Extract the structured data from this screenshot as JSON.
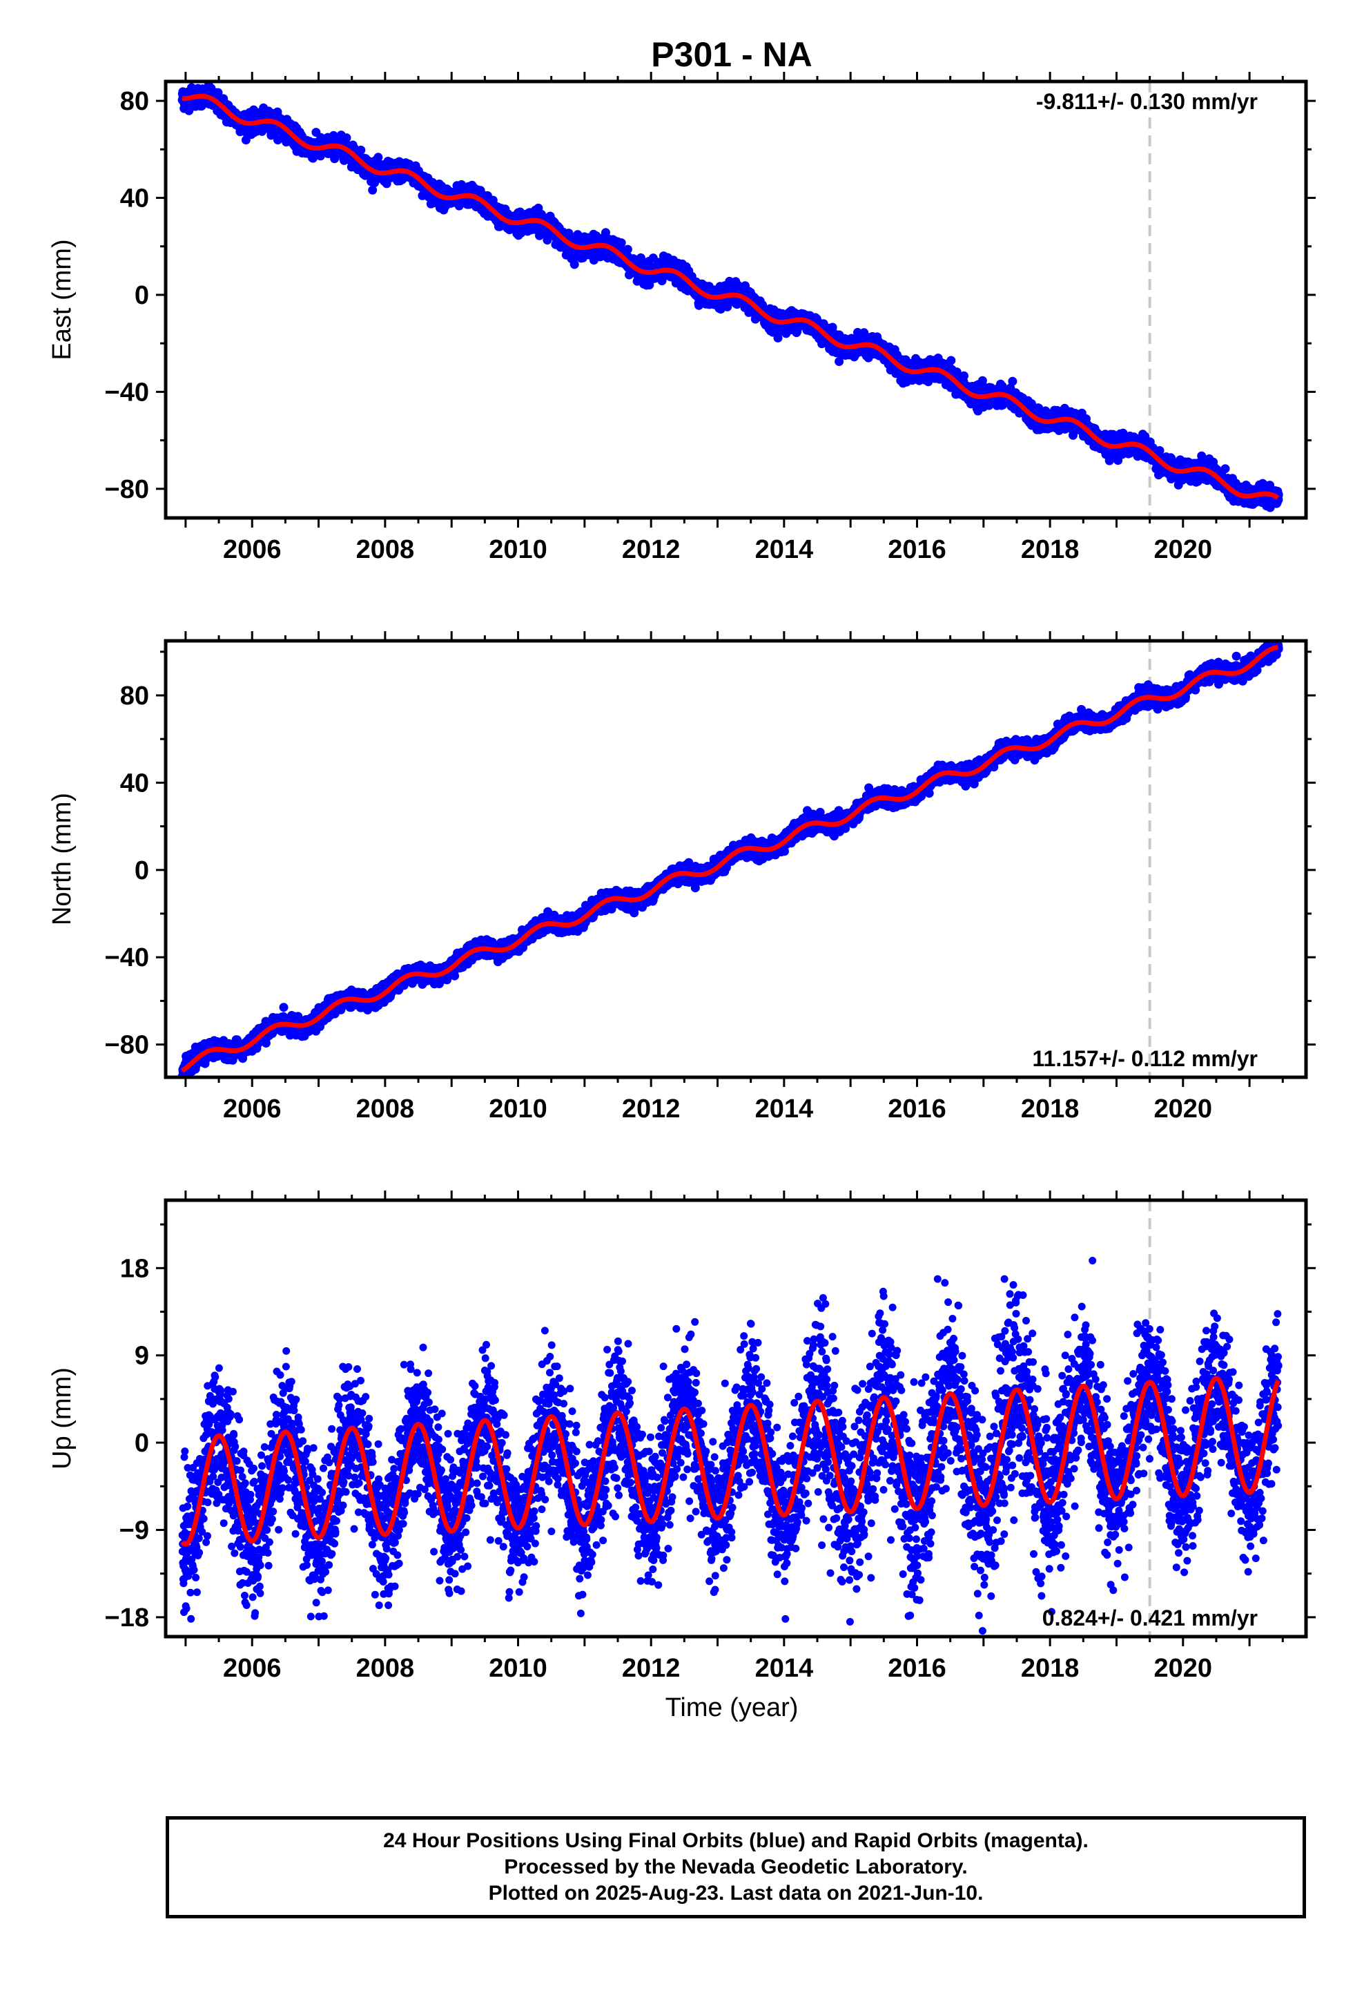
{
  "title": "P301 - NA",
  "chart_data": [
    {
      "type": "scatter",
      "panel": "east",
      "ylabel": "East (mm)",
      "xlabel": "",
      "xlim": [
        2004.7,
        2021.85
      ],
      "ylim": [
        -92,
        88
      ],
      "yticks": [
        80,
        40,
        0,
        -40,
        -80
      ],
      "xticks": [
        2006,
        2008,
        2010,
        2012,
        2014,
        2016,
        2018,
        2020
      ],
      "rate_label": "-9.811+/- 0.130 mm/yr",
      "rate_position": "top-right",
      "event_line_year": 2019.5,
      "series": [
        {
          "kind": "points",
          "color": "#0000ff",
          "start_year": 2004.95,
          "end_year": 2021.44,
          "start_value": 83,
          "end_value": -86,
          "annual_amplitude": 2.5,
          "noise": 2.0
        },
        {
          "kind": "model",
          "color": "#ff0000"
        }
      ]
    },
    {
      "type": "scatter",
      "panel": "north",
      "ylabel": "North (mm)",
      "xlabel": "",
      "xlim": [
        2004.7,
        2021.85
      ],
      "ylim": [
        -95,
        105
      ],
      "yticks": [
        80,
        40,
        0,
        -40,
        -80
      ],
      "xticks": [
        2006,
        2008,
        2010,
        2012,
        2014,
        2016,
        2018,
        2020
      ],
      "rate_label": "11.157+/- 0.112 mm/yr",
      "rate_position": "bottom-right",
      "event_line_year": 2019.5,
      "series": [
        {
          "kind": "points",
          "color": "#0000ff",
          "start_year": 2004.95,
          "end_year": 2021.44,
          "start_value": -90,
          "end_value": 100,
          "annual_amplitude": 2.5,
          "noise": 1.8
        },
        {
          "kind": "model",
          "color": "#ff0000"
        }
      ]
    },
    {
      "type": "scatter",
      "panel": "up",
      "ylabel": "Up (mm)",
      "xlabel": "Time (year)",
      "xlim": [
        2004.7,
        2021.85
      ],
      "ylim": [
        -20,
        25
      ],
      "yticks": [
        18,
        9,
        0,
        -9,
        -18
      ],
      "xticks": [
        2006,
        2008,
        2010,
        2012,
        2014,
        2016,
        2018,
        2020
      ],
      "rate_label": "0.824+/- 0.421 mm/yr",
      "rate_position": "bottom-right",
      "event_line_year": 2019.5,
      "series": [
        {
          "kind": "points",
          "color": "#0000ff",
          "start_year": 2004.95,
          "end_year": 2021.44,
          "start_value": -5,
          "end_value": 1,
          "annual_amplitude_start": 5.5,
          "annual_amplitude_end": 6,
          "noise": 3.5
        },
        {
          "kind": "model",
          "color": "#ff0000"
        }
      ]
    }
  ],
  "footer": {
    "line1": "24 Hour Positions Using Final Orbits (blue) and Rapid Orbits (magenta).",
    "line2": "Processed by the Nevada Geodetic Laboratory.",
    "line3": "Plotted on 2025-Aug-23. Last data on 2021-Jun-10."
  }
}
